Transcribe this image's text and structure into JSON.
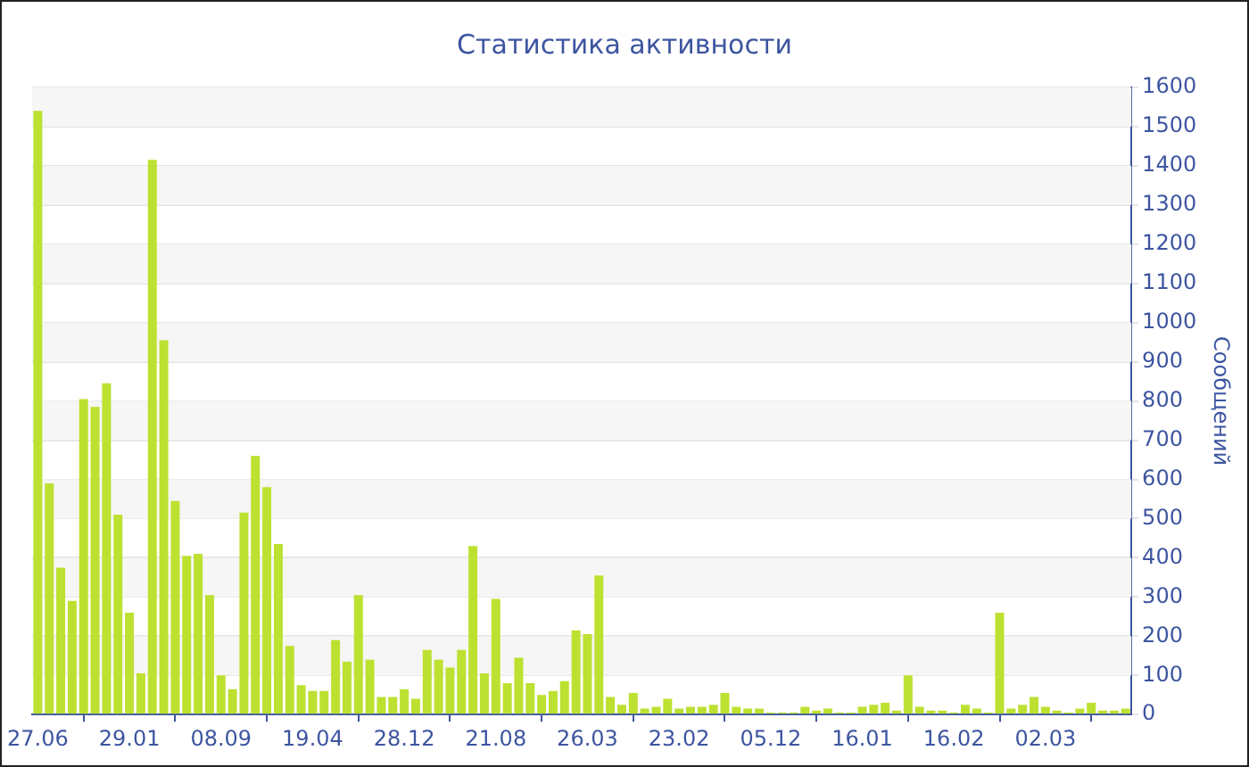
{
  "chart_data": {
    "type": "bar",
    "title": "Статистика активности",
    "ylabel": "Сообщений",
    "categories": [
      "27.06",
      null,
      null,
      null,
      null,
      null,
      null,
      null,
      "29.01",
      null,
      null,
      null,
      null,
      null,
      null,
      null,
      "08.09",
      null,
      null,
      null,
      null,
      null,
      null,
      null,
      "19.04",
      null,
      null,
      null,
      null,
      null,
      null,
      null,
      "28.12",
      null,
      null,
      null,
      null,
      null,
      null,
      null,
      "21.08",
      null,
      null,
      null,
      null,
      null,
      null,
      null,
      "26.03",
      null,
      null,
      null,
      null,
      null,
      null,
      null,
      "23.02",
      null,
      null,
      null,
      null,
      null,
      null,
      null,
      "05.12",
      null,
      null,
      null,
      null,
      null,
      null,
      null,
      "16.01",
      null,
      null,
      null,
      null,
      null,
      null,
      null,
      "16.02",
      null,
      null,
      null,
      null,
      null,
      null,
      null,
      "02.03",
      null,
      null,
      null,
      null,
      null,
      null,
      null
    ],
    "values": [
      1540,
      590,
      375,
      290,
      805,
      785,
      845,
      510,
      260,
      105,
      1415,
      955,
      545,
      405,
      410,
      305,
      100,
      65,
      515,
      660,
      580,
      435,
      175,
      75,
      60,
      60,
      190,
      135,
      305,
      140,
      45,
      45,
      65,
      40,
      165,
      140,
      120,
      165,
      430,
      105,
      295,
      80,
      145,
      80,
      50,
      60,
      85,
      215,
      205,
      355,
      45,
      25,
      55,
      15,
      20,
      40,
      15,
      20,
      20,
      25,
      55,
      20,
      15,
      15,
      5,
      5,
      5,
      20,
      10,
      15,
      5,
      5,
      20,
      25,
      30,
      10,
      100,
      20,
      10,
      10,
      5,
      25,
      15,
      5,
      260,
      15,
      25,
      45,
      20,
      10,
      5,
      15,
      30,
      10,
      10,
      15
    ],
    "color": "#bde131",
    "ylim": [
      0,
      1600
    ],
    "yticks": [
      0,
      100,
      200,
      300,
      400,
      500,
      600,
      700,
      800,
      900,
      1000,
      1100,
      1200,
      1300,
      1400,
      1500,
      1600
    ],
    "grid": "y"
  }
}
